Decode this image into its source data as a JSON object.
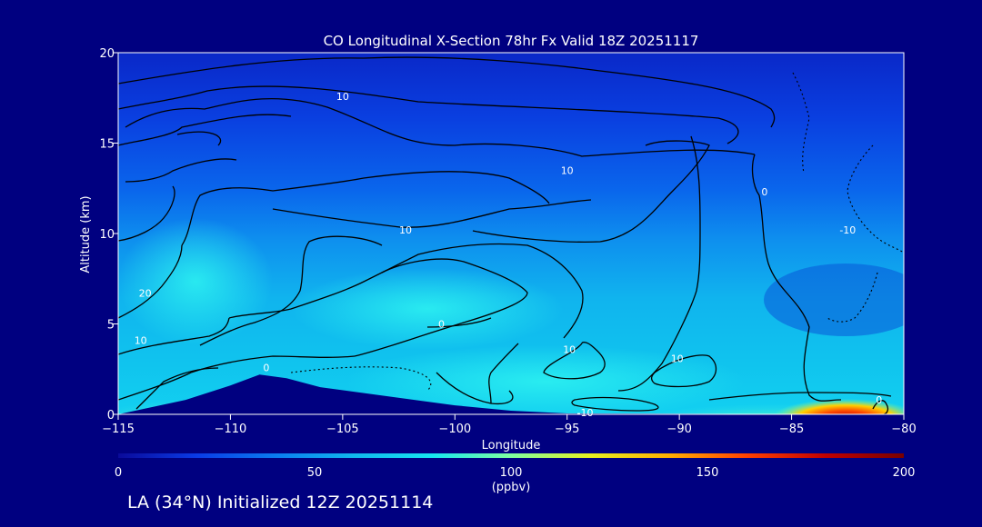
{
  "chart_data": {
    "type": "heatmap",
    "title": "CO Longitudinal X-Section 78hr  Fx Valid 18Z 20251117",
    "xlabel": "Longitude",
    "ylabel": "Altitude (km)",
    "xlim": [
      -115,
      -80
    ],
    "ylim": [
      0,
      20
    ],
    "x_ticks": [
      -115,
      -110,
      -105,
      -100,
      -95,
      -90,
      -85,
      -80
    ],
    "x_tick_labels": [
      "−115",
      "−110",
      "−105",
      "−100",
      "−95",
      "−90",
      "−85",
      "−80"
    ],
    "y_ticks": [
      0,
      5,
      10,
      15,
      20
    ],
    "y_tick_labels": [
      "0",
      "5",
      "10",
      "15",
      "20"
    ],
    "colorbar": {
      "min": 0,
      "max": 200,
      "ticks": [
        0,
        50,
        100,
        150,
        200
      ],
      "tick_labels": [
        "0",
        "50",
        "100",
        "150",
        "200"
      ],
      "unit_label": "(ppbv)",
      "colors": [
        "#0a0a9a",
        "#0a3be6",
        "#0a7cf0",
        "#10b8ee",
        "#16e6f0",
        "#7fffa0",
        "#e6f020",
        "#ffb000",
        "#ff4000",
        "#c00000",
        "#780000"
      ]
    },
    "contour_labels": [
      {
        "text": "10",
        "lon": -105,
        "alt": 17.6
      },
      {
        "text": "10",
        "lon": -95,
        "alt": 13.5
      },
      {
        "text": "0",
        "lon": -86.2,
        "alt": 12.3
      },
      {
        "text": "10",
        "lon": -102.2,
        "alt": 10.2
      },
      {
        "text": "-10",
        "lon": -82.5,
        "alt": 10.2
      },
      {
        "text": "20",
        "lon": -113.8,
        "alt": 6.7
      },
      {
        "text": "0",
        "lon": -100.6,
        "alt": 5.0
      },
      {
        "text": "10",
        "lon": -114,
        "alt": 4.1
      },
      {
        "text": "10",
        "lon": -94.9,
        "alt": 3.6
      },
      {
        "text": "10",
        "lon": -90.1,
        "alt": 3.1
      },
      {
        "text": "0",
        "lon": -108.4,
        "alt": 2.6
      },
      {
        "text": "-10",
        "lon": -94.2,
        "alt": 0.1
      },
      {
        "text": "0",
        "lon": -81.1,
        "alt": 0.8
      }
    ],
    "terrain_profile": [
      {
        "lon": -115,
        "alt": 0
      },
      {
        "lon": -112,
        "alt": 0.8
      },
      {
        "lon": -110,
        "alt": 1.6
      },
      {
        "lon": -108.7,
        "alt": 2.2
      },
      {
        "lon": -107.5,
        "alt": 2.0
      },
      {
        "lon": -106,
        "alt": 1.5
      },
      {
        "lon": -103,
        "alt": 1.0
      },
      {
        "lon": -100,
        "alt": 0.5
      },
      {
        "lon": -97.5,
        "alt": 0.2
      },
      {
        "lon": -95,
        "alt": 0.05
      },
      {
        "lon": -80,
        "alt": 0
      }
    ]
  },
  "footer": {
    "text": "LA (34°N) Initialized 12Z 20251114"
  }
}
